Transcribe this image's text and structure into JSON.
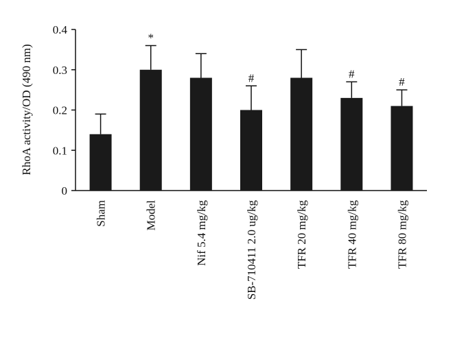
{
  "chart_data": {
    "type": "bar",
    "y_label": "RhoA activity/OD (490 nm)",
    "categories": [
      "Sham",
      "Model",
      "Nif 5.4 mg/kg",
      "SB-710411 2.0 ug/kg",
      "TFR 20 mg/kg",
      "TFR 40 mg/kg",
      "TFR 80 mg/kg"
    ],
    "values": [
      0.14,
      0.3,
      0.28,
      0.2,
      0.28,
      0.23,
      0.21
    ],
    "errors": [
      0.05,
      0.06,
      0.06,
      0.06,
      0.07,
      0.04,
      0.04
    ],
    "annotations": [
      null,
      "*",
      null,
      "#",
      null,
      "#",
      "#"
    ],
    "color": "#1a1a1a",
    "ylim": [
      0,
      0.4
    ],
    "yticks": [
      0,
      0.1,
      0.2,
      0.3,
      0.4
    ],
    "grid": false
  }
}
